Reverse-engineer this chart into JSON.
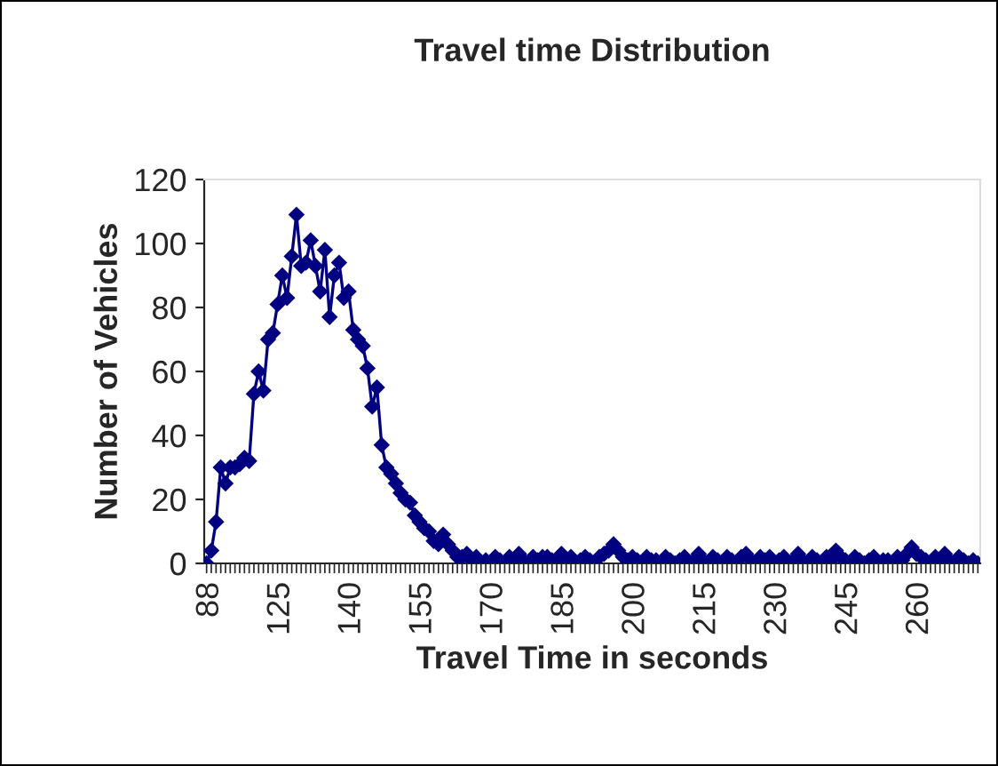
{
  "chart_data": {
    "type": "line",
    "title": "Travel time Distribution",
    "xlabel": "Travel Time in seconds",
    "ylabel": "Number of Vehicles",
    "categories": [
      "88",
      null,
      null,
      null,
      null,
      null,
      null,
      null,
      null,
      null,
      null,
      null,
      null,
      null,
      null,
      "125",
      null,
      null,
      null,
      null,
      null,
      null,
      null,
      null,
      null,
      null,
      null,
      null,
      null,
      null,
      "140",
      null,
      null,
      null,
      null,
      null,
      null,
      null,
      null,
      null,
      null,
      null,
      null,
      null,
      null,
      "155",
      null,
      null,
      null,
      null,
      null,
      null,
      null,
      null,
      null,
      null,
      null,
      null,
      null,
      null,
      "170",
      null,
      null,
      null,
      null,
      null,
      null,
      null,
      null,
      null,
      null,
      null,
      null,
      null,
      null,
      "185",
      null,
      null,
      null,
      null,
      null,
      null,
      null,
      null,
      null,
      null,
      null,
      null,
      null,
      null,
      "200",
      null,
      null,
      null,
      null,
      null,
      null,
      null,
      null,
      null,
      null,
      null,
      null,
      null,
      null,
      "215",
      null,
      null,
      null,
      null,
      null,
      null,
      null,
      null,
      null,
      null,
      null,
      null,
      null,
      null,
      "230",
      null,
      null,
      null,
      null,
      null,
      null,
      null,
      null,
      null,
      null,
      null,
      null,
      null,
      null,
      "245",
      null,
      null,
      null,
      null,
      null,
      null,
      null,
      null,
      null,
      null,
      null,
      null,
      null,
      null,
      "260",
      null,
      null,
      null,
      null,
      null,
      null,
      null,
      null,
      null,
      null,
      null,
      null,
      null
    ],
    "series": [
      {
        "color": "#000080",
        "values": [
          0,
          4,
          13,
          30,
          25,
          30,
          30,
          31,
          33,
          32,
          53,
          60,
          54,
          70,
          72,
          81,
          90,
          83,
          96,
          109,
          93,
          94,
          101,
          93,
          85,
          98,
          77,
          90,
          94,
          83,
          85,
          73,
          70,
          68,
          61,
          49,
          55,
          37,
          30,
          28,
          25,
          22,
          20,
          19,
          15,
          13,
          11,
          10,
          7,
          6,
          9,
          6,
          4,
          2,
          2,
          3,
          1,
          2,
          0,
          1,
          0,
          2,
          1,
          0,
          2,
          1,
          3,
          1,
          0,
          2,
          1,
          2,
          2,
          1,
          0,
          3,
          1,
          2,
          0,
          1,
          2,
          1,
          0,
          2,
          3,
          4,
          6,
          4,
          2,
          1,
          2,
          1,
          0,
          2,
          1,
          1,
          0,
          2,
          1,
          0,
          1,
          2,
          0,
          1,
          3,
          1,
          0,
          2,
          1,
          0,
          2,
          1,
          0,
          2,
          3,
          1,
          0,
          2,
          1,
          2,
          0,
          1,
          2,
          0,
          1,
          3,
          1,
          0,
          2,
          1,
          0,
          2,
          1,
          4,
          2,
          1,
          0,
          2,
          1,
          0,
          1,
          2,
          0,
          1,
          1,
          0,
          2,
          1,
          3,
          5,
          3,
          2,
          1,
          0,
          2,
          1,
          3,
          1,
          0,
          2,
          1,
          0,
          1,
          0
        ]
      }
    ],
    "ylim": [
      0,
      120
    ],
    "yticks": [
      0,
      20,
      40,
      60,
      80,
      100,
      120
    ],
    "grid": false,
    "legend": false,
    "marker": "diamond",
    "line_style": "solid"
  }
}
